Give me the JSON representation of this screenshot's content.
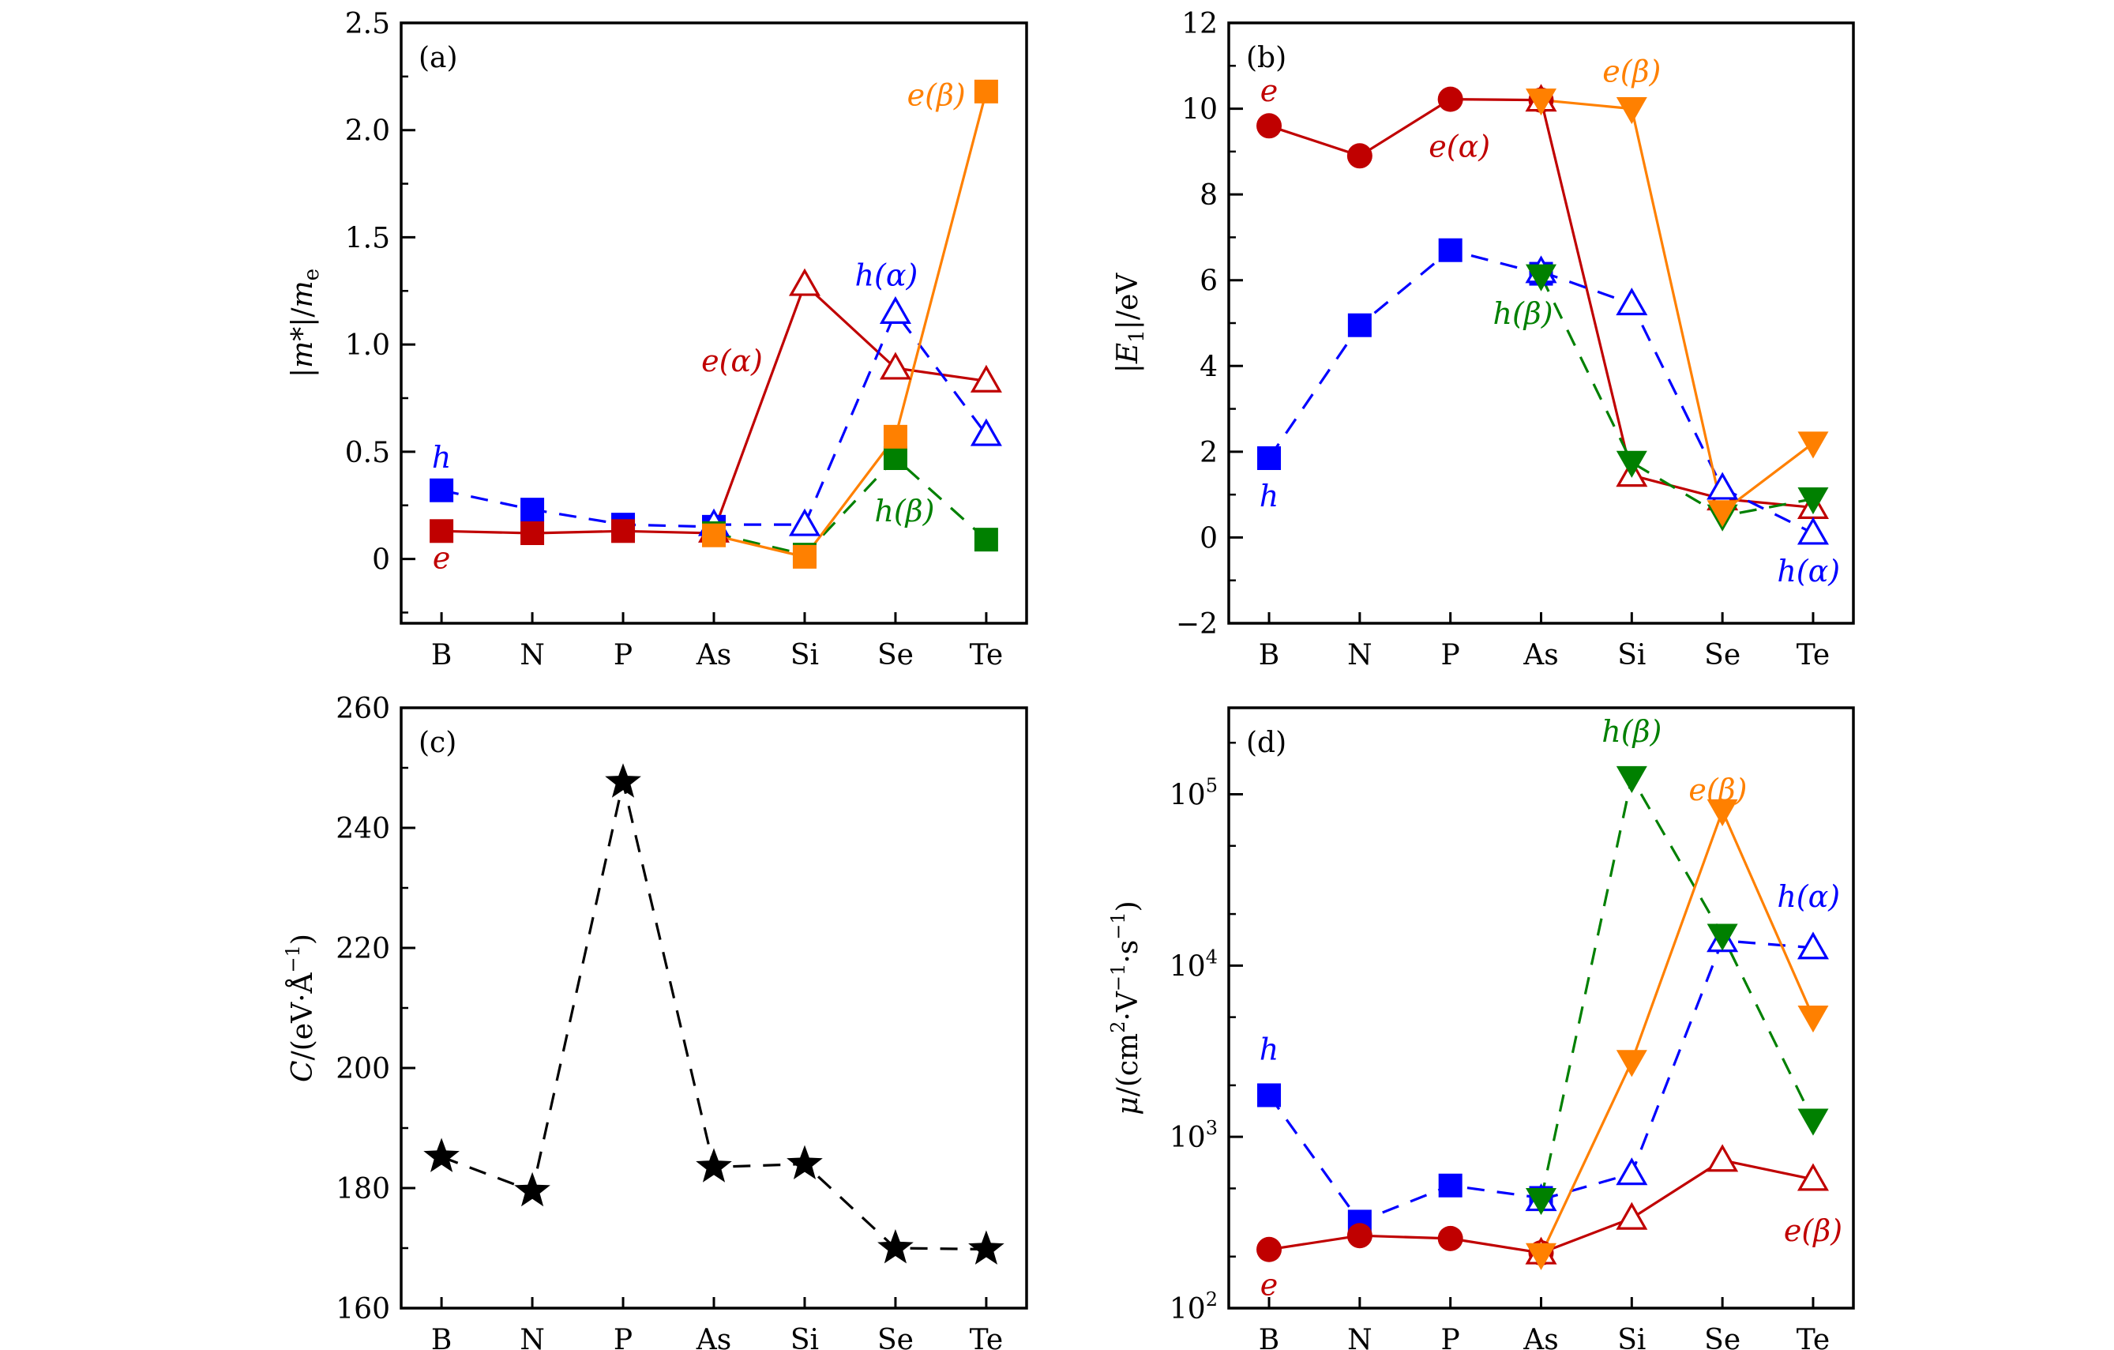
{
  "chart_data": [
    {
      "id": "a",
      "type": "line",
      "panel_label": "(a)",
      "title": "",
      "xlabel": "",
      "ylabel": "|m*|/m_e",
      "ylabel_parts": {
        "main": "|m*|/m",
        "sub": "e"
      },
      "categories": [
        "B",
        "N",
        "P",
        "As",
        "Si",
        "Se",
        "Te"
      ],
      "yscale": "linear",
      "ylim": [
        -0.3,
        2.5
      ],
      "yticks": [
        0,
        0.5,
        1.0,
        1.5,
        2.0,
        2.5
      ],
      "ytick_labels": [
        "0",
        "0.5",
        "1.0",
        "1.5",
        "2.0",
        "2.5"
      ],
      "yminor": [
        -0.25,
        0.25,
        0.75,
        1.25,
        1.75,
        2.25
      ],
      "grid": false,
      "series": [
        {
          "name": "h",
          "color": "#0000ff",
          "marker": "square",
          "filled": true,
          "linestyle": "dashed",
          "x": [
            "B",
            "N",
            "P",
            "As"
          ],
          "values": [
            0.32,
            0.23,
            0.16,
            0.15
          ]
        },
        {
          "name": "e",
          "color": "#c00000",
          "marker": "square",
          "filled": true,
          "linestyle": "solid",
          "x": [
            "B",
            "N",
            "P",
            "As"
          ],
          "values": [
            0.13,
            0.12,
            0.13,
            0.12
          ]
        },
        {
          "name": "e(α)",
          "color": "#c00000",
          "marker": "triangle-up",
          "filled": false,
          "linestyle": "solid",
          "x": [
            "As",
            "Si",
            "Se",
            "Te"
          ],
          "values": [
            0.13,
            1.28,
            0.89,
            0.83
          ]
        },
        {
          "name": "h(α)",
          "color": "#0000ff",
          "marker": "triangle-up",
          "filled": false,
          "linestyle": "dashed",
          "x": [
            "As",
            "Si",
            "Se",
            "Te"
          ],
          "values": [
            0.16,
            0.16,
            1.15,
            0.58
          ]
        },
        {
          "name": "h(β)",
          "color": "#008000",
          "marker": "square",
          "filled": true,
          "linestyle": "dashed",
          "x": [
            "As",
            "Si",
            "Se",
            "Te"
          ],
          "values": [
            0.12,
            0.02,
            0.47,
            0.09
          ]
        },
        {
          "name": "e(β)",
          "color": "#ff8000",
          "marker": "square",
          "filled": true,
          "linestyle": "solid",
          "x": [
            "As",
            "Si",
            "Se",
            "Te"
          ],
          "values": [
            0.11,
            0.01,
            0.57,
            2.18
          ]
        }
      ],
      "annotations": [
        {
          "text": "h",
          "color": "#0000ff",
          "x": "B",
          "y": 0.47
        },
        {
          "text": "e",
          "color": "#c00000",
          "x": "B",
          "y": 0.0
        },
        {
          "text": "e(α)",
          "color": "#c00000",
          "x": 3.2,
          "y": 0.92
        },
        {
          "text": "h(α)",
          "color": "#0000ff",
          "x": 4.9,
          "y": 1.32
        },
        {
          "text": "h(β)",
          "color": "#008000",
          "x": 5.1,
          "y": 0.22
        },
        {
          "text": "e(β)",
          "color": "#ff8000",
          "x": 5.45,
          "y": 2.16
        }
      ]
    },
    {
      "id": "b",
      "type": "line",
      "panel_label": "(b)",
      "title": "",
      "xlabel": "",
      "ylabel": "|E1|/eV",
      "ylabel_parts": {
        "main": "|E",
        "sub": "1",
        "tail": "|/eV"
      },
      "categories": [
        "B",
        "N",
        "P",
        "As",
        "Si",
        "Se",
        "Te"
      ],
      "yscale": "linear",
      "ylim": [
        -2,
        12
      ],
      "yticks": [
        -2,
        0,
        2,
        4,
        6,
        8,
        10,
        12
      ],
      "ytick_labels": [
        "−2",
        "0",
        "2",
        "4",
        "6",
        "8",
        "10",
        "12"
      ],
      "yminor": [
        -1,
        1,
        3,
        5,
        7,
        9,
        11
      ],
      "grid": false,
      "series": [
        {
          "name": "e",
          "color": "#c00000",
          "marker": "circle",
          "filled": true,
          "linestyle": "solid",
          "x": [
            "B",
            "N",
            "P",
            "As"
          ],
          "values": [
            9.6,
            8.9,
            10.22,
            10.2
          ]
        },
        {
          "name": "h",
          "color": "#0000ff",
          "marker": "square",
          "filled": true,
          "linestyle": "dashed",
          "x": [
            "B",
            "N",
            "P",
            "As"
          ],
          "values": [
            1.85,
            4.95,
            6.7,
            6.15
          ]
        },
        {
          "name": "e(α)",
          "color": "#c00000",
          "marker": "triangle-up",
          "filled": false,
          "linestyle": "solid",
          "x": [
            "As",
            "Si",
            "Se",
            "Te"
          ],
          "values": [
            10.2,
            1.45,
            0.9,
            0.7
          ]
        },
        {
          "name": "h(α)",
          "color": "#0000ff",
          "marker": "triangle-up",
          "filled": false,
          "linestyle": "dashed",
          "x": [
            "As",
            "Si",
            "Se",
            "Te"
          ],
          "values": [
            6.2,
            5.45,
            1.15,
            0.1
          ]
        },
        {
          "name": "h(β)",
          "color": "#008000",
          "marker": "triangle-down",
          "filled": true,
          "linestyle": "dashed",
          "x": [
            "As",
            "Si",
            "Se",
            "Te"
          ],
          "values": [
            6.1,
            1.75,
            0.5,
            0.9
          ]
        },
        {
          "name": "e(β)",
          "color": "#ff8000",
          "marker": "triangle-down",
          "filled": true,
          "linestyle": "solid",
          "x": [
            "As",
            "Si",
            "Se",
            "Te"
          ],
          "values": [
            10.2,
            10.0,
            0.6,
            2.2
          ]
        }
      ],
      "annotations": [
        {
          "text": "e",
          "color": "#c00000",
          "x": "B",
          "y": 10.4
        },
        {
          "text": "h",
          "color": "#0000ff",
          "x": "B",
          "y": 0.95
        },
        {
          "text": "e(α)",
          "color": "#c00000",
          "x": 2.1,
          "y": 9.1
        },
        {
          "text": "h(β)",
          "color": "#008000",
          "x": 2.8,
          "y": 5.2
        },
        {
          "text": "e(β)",
          "color": "#ff8000",
          "x": 4.0,
          "y": 10.85
        },
        {
          "text": "h(α)",
          "color": "#0000ff",
          "x": 5.95,
          "y": -0.8
        }
      ]
    },
    {
      "id": "c",
      "type": "line",
      "panel_label": "(c)",
      "title": "",
      "xlabel": "",
      "ylabel": "C/(eV·Å⁻¹)",
      "ylabel_parts": {
        "main": "C",
        "tail": "/(eV·Å",
        "sup": "−1",
        "close": ")"
      },
      "categories": [
        "B",
        "N",
        "P",
        "As",
        "Si",
        "Se",
        "Te"
      ],
      "yscale": "linear",
      "ylim": [
        160,
        260
      ],
      "yticks": [
        160,
        180,
        200,
        220,
        240,
        260
      ],
      "ytick_labels": [
        "160",
        "180",
        "200",
        "220",
        "240",
        "260"
      ],
      "yminor": [
        170,
        190,
        210,
        230,
        250
      ],
      "grid": false,
      "series": [
        {
          "name": "C",
          "color": "#000000",
          "marker": "star",
          "filled": true,
          "linestyle": "dashed",
          "x": [
            "B",
            "N",
            "P",
            "As",
            "Si",
            "Se",
            "Te"
          ],
          "values": [
            185.2,
            179.5,
            247.6,
            183.5,
            184.0,
            170.0,
            169.8
          ]
        }
      ],
      "annotations": []
    },
    {
      "id": "d",
      "type": "line",
      "panel_label": "(d)",
      "title": "",
      "xlabel": "",
      "ylabel": "μ/(cm²·V⁻¹·s⁻¹)",
      "categories": [
        "B",
        "N",
        "P",
        "As",
        "Si",
        "Se",
        "Te"
      ],
      "yscale": "log",
      "ylim": [
        100,
        320000
      ],
      "yticks": [
        100,
        1000,
        10000,
        100000
      ],
      "ytick_labels": [
        {
          "base": "10",
          "exp": "2"
        },
        {
          "base": "10",
          "exp": "3"
        },
        {
          "base": "10",
          "exp": "4"
        },
        {
          "base": "10",
          "exp": "5"
        }
      ],
      "grid": false,
      "series": [
        {
          "name": "h",
          "color": "#0000ff",
          "marker": "square",
          "filled": true,
          "linestyle": "dashed",
          "x": [
            "B",
            "N",
            "P",
            "As"
          ],
          "values": [
            1750,
            320,
            520,
            440
          ]
        },
        {
          "name": "e",
          "color": "#c00000",
          "marker": "circle",
          "filled": true,
          "linestyle": "solid",
          "x": [
            "B",
            "N",
            "P",
            "As"
          ],
          "values": [
            220,
            265,
            255,
            210
          ]
        },
        {
          "name": "e(α)",
          "color": "#c00000",
          "marker": "triangle-up",
          "filled": false,
          "linestyle": "solid",
          "x": [
            "As",
            "Si",
            "Se",
            "Te"
          ],
          "values": [
            210,
            335,
            730,
            565
          ]
        },
        {
          "name": "h(α)",
          "color": "#0000ff",
          "marker": "triangle-up",
          "filled": false,
          "linestyle": "dashed",
          "x": [
            "As",
            "Si",
            "Se",
            "Te"
          ],
          "values": [
            430,
            610,
            14000,
            12700
          ]
        },
        {
          "name": "h(β)",
          "color": "#008000",
          "marker": "triangle-down",
          "filled": true,
          "linestyle": "dashed",
          "x": [
            "As",
            "Si",
            "Se",
            "Te"
          ],
          "values": [
            430,
            125000,
            15000,
            1250
          ]
        },
        {
          "name": "e(β)",
          "color": "#ff8000",
          "marker": "triangle-down",
          "filled": true,
          "linestyle": "solid",
          "x": [
            "As",
            "Si",
            "Se",
            "Te"
          ],
          "values": [
            205,
            2750,
            80000,
            5000
          ]
        }
      ],
      "annotations": [
        {
          "text": "h",
          "color": "#0000ff",
          "x": "B",
          "y": 3200
        },
        {
          "text": "e",
          "color": "#c00000",
          "x": "B",
          "y": 135
        },
        {
          "text": "h(β)",
          "color": "#008000",
          "x": 4.0,
          "y": 230000
        },
        {
          "text": "e(β)",
          "color": "#ff8000",
          "x": 4.95,
          "y": 105000
        },
        {
          "text": "h(α)",
          "color": "#0000ff",
          "x": 5.95,
          "y": 25000
        },
        {
          "text": "e(β)",
          "color": "#c00000",
          "x": 6.0,
          "y": 280
        }
      ]
    }
  ],
  "colors": {
    "red": "#c00000",
    "blue": "#0000ff",
    "green": "#008000",
    "orange": "#ff8000",
    "black": "#000000"
  }
}
